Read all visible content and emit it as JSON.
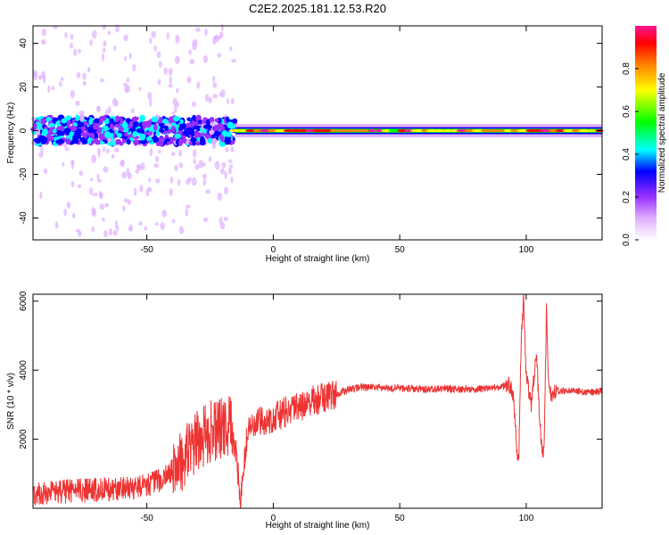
{
  "title": "C2E2.2025.181.12.53.R20",
  "chart_data": [
    {
      "type": "heatmap",
      "xlabel": "Height of straight line (km)",
      "ylabel": "Frequency (Hz)",
      "xlim": [
        -95,
        130
      ],
      "ylim": [
        -50,
        48
      ],
      "xticks": [
        -50,
        0,
        50,
        100
      ],
      "yticks": [
        -40,
        -20,
        0,
        20,
        40
      ],
      "xtick_labels": [
        "-50",
        "0",
        "50",
        "100"
      ],
      "ytick_labels": [
        "-40",
        "-20",
        "0",
        "20",
        "40"
      ],
      "colorbar": {
        "label": "Normalized spectral amplitude",
        "range": [
          0,
          1
        ],
        "ticks": [
          "0.0",
          "0.2",
          "0.4",
          "0.6",
          "0.8"
        ],
        "colormap": [
          "#ffffff",
          "#e0b0ff",
          "#9b30ff",
          "#0000ff",
          "#00ffff",
          "#00ff00",
          "#ffff00",
          "#ff8000",
          "#ff0000",
          "#ff1493"
        ]
      },
      "regions": [
        {
          "x": [
            -95,
            -15
          ],
          "freq_center": 0,
          "freq_spread": 6,
          "amplitude": 0.35
        },
        {
          "x": [
            -15,
            130
          ],
          "freq_center": 0,
          "freq_spread": 2,
          "amplitude": 0.95
        }
      ],
      "grid": false
    },
    {
      "type": "line",
      "xlabel": "Height of straight line (km)",
      "ylabel": "SNR (10 * v/v)",
      "xlim": [
        -95,
        130
      ],
      "ylim": [
        0,
        6200
      ],
      "xticks": [
        -50,
        0,
        50,
        100
      ],
      "yticks": [
        2000,
        4000,
        6000
      ],
      "xtick_labels": [
        "-50",
        "0",
        "50",
        "100"
      ],
      "ytick_labels": [
        "2000",
        "4000",
        "6000"
      ],
      "series_color": "#ee3333",
      "x": [
        -95,
        -80,
        -65,
        -55,
        -45,
        -38,
        -32,
        -26,
        -20,
        -16,
        -13,
        -10,
        -5,
        0,
        5,
        10,
        15,
        20,
        25,
        30,
        35,
        40,
        50,
        60,
        70,
        80,
        90,
        93,
        95,
        96,
        97,
        98,
        99,
        100,
        102,
        104,
        106,
        107,
        108,
        109,
        110,
        112,
        115,
        120,
        125,
        130
      ],
      "values": [
        400,
        500,
        550,
        600,
        800,
        1200,
        1800,
        2200,
        2300,
        2400,
        300,
        2300,
        2500,
        2600,
        2800,
        2900,
        3100,
        3200,
        3300,
        3450,
        3500,
        3500,
        3480,
        3450,
        3450,
        3450,
        3500,
        3600,
        3300,
        2000,
        1200,
        4800,
        6100,
        3800,
        3000,
        4500,
        1800,
        1500,
        5700,
        3400,
        3300,
        3400,
        3400,
        3400,
        3350,
        3400
      ],
      "grid": false
    }
  ]
}
